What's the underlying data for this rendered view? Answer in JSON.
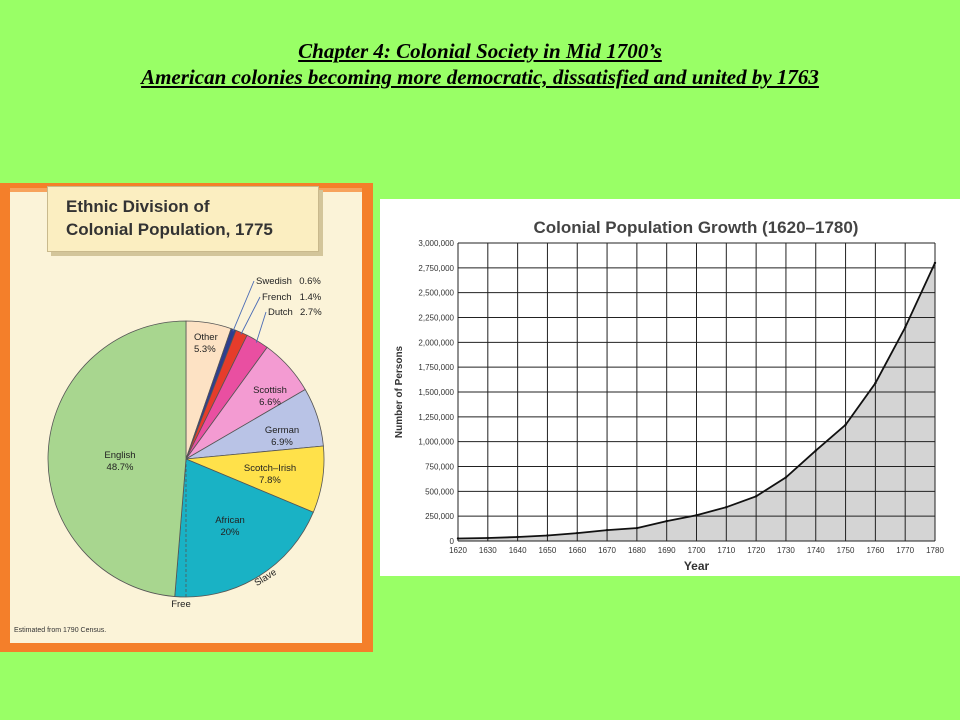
{
  "slide": {
    "title_line1": "Chapter 4:  Colonial Society in Mid 1700’s",
    "title_line2": "American colonies becoming more democratic, dissatisfied and united by 1763"
  },
  "chart_data": [
    {
      "type": "pie",
      "title_line1": "Ethnic Division of",
      "title_line2": "Colonial Population, 1775",
      "note": "Estimated from 1790 Census.",
      "slices": [
        {
          "label": "Other",
          "value_label": "5.3%",
          "value": 5.3,
          "color": "#fde2c4"
        },
        {
          "label": "Swedish",
          "value_label": "0.6%",
          "value": 0.6,
          "color": "#2f3e8f"
        },
        {
          "label": "French",
          "value_label": "1.4%",
          "value": 1.4,
          "color": "#e63c2b"
        },
        {
          "label": "Dutch",
          "value_label": "2.7%",
          "value": 2.7,
          "color": "#e94fa1"
        },
        {
          "label": "Scottish",
          "value_label": "6.6%",
          "value": 6.6,
          "color": "#f39bd2"
        },
        {
          "label": "German",
          "value_label": "6.9%",
          "value": 6.9,
          "color": "#b9c3e6"
        },
        {
          "label": "Scotch–Irish",
          "value_label": "7.8%",
          "value": 7.8,
          "color": "#ffe14a"
        },
        {
          "label": "African",
          "value_label": "20%",
          "value": 20,
          "color": "#19b2c5"
        },
        {
          "label": "English",
          "value_label": "48.7%",
          "value": 48.7,
          "color": "#a8d68f"
        }
      ],
      "african_split": {
        "free_label": "Free",
        "slave_label": "Slave"
      }
    },
    {
      "type": "area",
      "title": "Colonial Population Growth (1620–1780)",
      "xlabel": "Year",
      "ylabel": "Number of Persons",
      "x": [
        1620,
        1630,
        1640,
        1650,
        1660,
        1670,
        1680,
        1690,
        1700,
        1710,
        1720,
        1730,
        1740,
        1750,
        1760,
        1770,
        1780
      ],
      "y": [
        25000,
        30000,
        40000,
        55000,
        80000,
        110000,
        130000,
        200000,
        260000,
        340000,
        450000,
        640000,
        910000,
        1170000,
        1590000,
        2150000,
        2800000
      ],
      "ylim": [
        0,
        3000000
      ],
      "yticks": [
        "0",
        "250,000",
        "500,000",
        "750,000",
        "1,000,000",
        "1,250,000",
        "1,500,000",
        "1,750,000",
        "2,000,000",
        "2,250,000",
        "2,500,000",
        "2,750,000",
        "3,000,000"
      ],
      "grid": true,
      "fill_color": "#d4d4d4"
    }
  ]
}
